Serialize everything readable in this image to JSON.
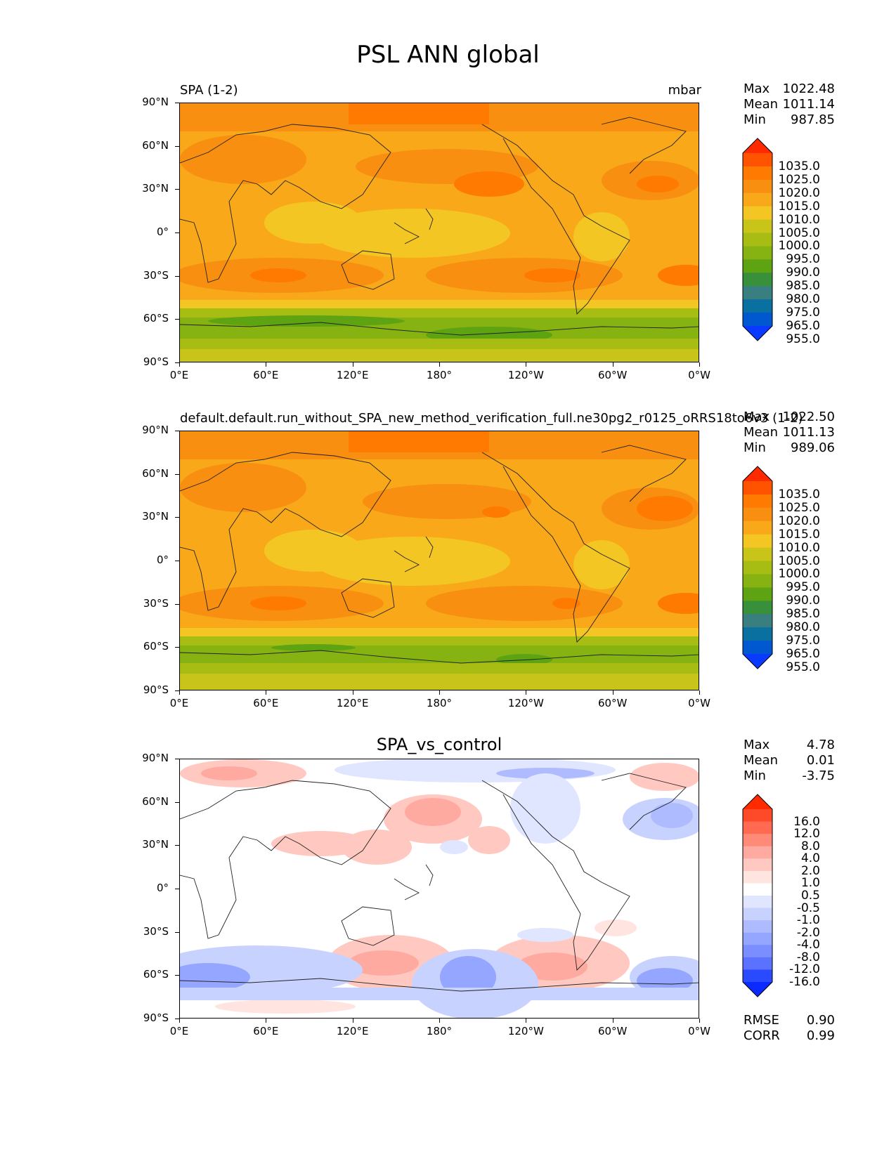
{
  "title": "PSL ANN global",
  "axes": {
    "y_ticks": [
      "90°N",
      "60°N",
      "30°N",
      "0°",
      "30°S",
      "60°S",
      "90°S"
    ],
    "x_ticks": [
      "0°E",
      "60°E",
      "120°E",
      "180°",
      "120°W",
      "60°W",
      "0°W"
    ]
  },
  "panels": [
    {
      "title_left": "SPA (1-2)",
      "title_right": "mbar",
      "title_center": "",
      "stats": [
        {
          "k": "Max",
          "v": "1022.48"
        },
        {
          "k": "Mean",
          "v": "1011.14"
        },
        {
          "k": "Min",
          "v": "987.85"
        }
      ],
      "footer": [],
      "colorbar": {
        "labels": [
          "1035.0",
          "1025.0",
          "1020.0",
          "1015.0",
          "1010.0",
          "1005.0",
          "1000.0",
          "995.0",
          "990.0",
          "985.0",
          "980.0",
          "975.0",
          "965.0",
          "955.0"
        ],
        "colors": [
          "#ff2a00",
          "#ff5300",
          "#ff7a00",
          "#f98f10",
          "#f8a818",
          "#f3c624",
          "#c8c41a",
          "#a8bd14",
          "#86b312",
          "#5ea312",
          "#38913a",
          "#3a7f80",
          "#0a70a0",
          "#0058d0",
          "#0a3aff"
        ]
      }
    },
    {
      "title_left": "default.default.run_without_SPA_new_method_verification_full.ne30pg2_r0125_oRRS18to6v3 (1-2)",
      "title_right": "mbar",
      "title_center": "",
      "stats": [
        {
          "k": "Max",
          "v": "1022.50"
        },
        {
          "k": "Mean",
          "v": "1011.13"
        },
        {
          "k": "Min",
          "v": "989.06"
        }
      ],
      "footer": [],
      "colorbar": {
        "labels": [
          "1035.0",
          "1025.0",
          "1020.0",
          "1015.0",
          "1010.0",
          "1005.0",
          "1000.0",
          "995.0",
          "990.0",
          "985.0",
          "980.0",
          "975.0",
          "965.0",
          "955.0"
        ],
        "colors": [
          "#ff2a00",
          "#ff5300",
          "#ff7a00",
          "#f98f10",
          "#f8a818",
          "#f3c624",
          "#c8c41a",
          "#a8bd14",
          "#86b312",
          "#5ea312",
          "#38913a",
          "#3a7f80",
          "#0a70a0",
          "#0058d0",
          "#0a3aff"
        ]
      }
    },
    {
      "title_left": "",
      "title_right": "",
      "title_center": "SPA_vs_control",
      "stats": [
        {
          "k": "Max",
          "v": "4.78"
        },
        {
          "k": "Mean",
          "v": "0.01"
        },
        {
          "k": "Min",
          "v": "-3.75"
        }
      ],
      "footer": [
        {
          "k": "RMSE",
          "v": "0.90"
        },
        {
          "k": "CORR",
          "v": "0.99"
        }
      ],
      "colorbar": {
        "labels": [
          "16.0",
          "12.0",
          "8.0",
          "4.0",
          "2.0",
          "1.0",
          "0.5",
          "-0.5",
          "-1.0",
          "-2.0",
          "-4.0",
          "-8.0",
          "-12.0",
          "-16.0"
        ],
        "colors": [
          "#ff2a00",
          "#ff4a2a",
          "#ff6a50",
          "#ff8a78",
          "#ffaaa0",
          "#ffc8c0",
          "#ffe4e0",
          "#ffffff",
          "#e0e6ff",
          "#c8d2ff",
          "#aebcff",
          "#94a6ff",
          "#7a8eff",
          "#5a72ff",
          "#2a4aff",
          "#0a2aff"
        ]
      }
    }
  ],
  "colors": {
    "ocean_high": "#f98f10",
    "diff_bg": "#ffffff"
  }
}
